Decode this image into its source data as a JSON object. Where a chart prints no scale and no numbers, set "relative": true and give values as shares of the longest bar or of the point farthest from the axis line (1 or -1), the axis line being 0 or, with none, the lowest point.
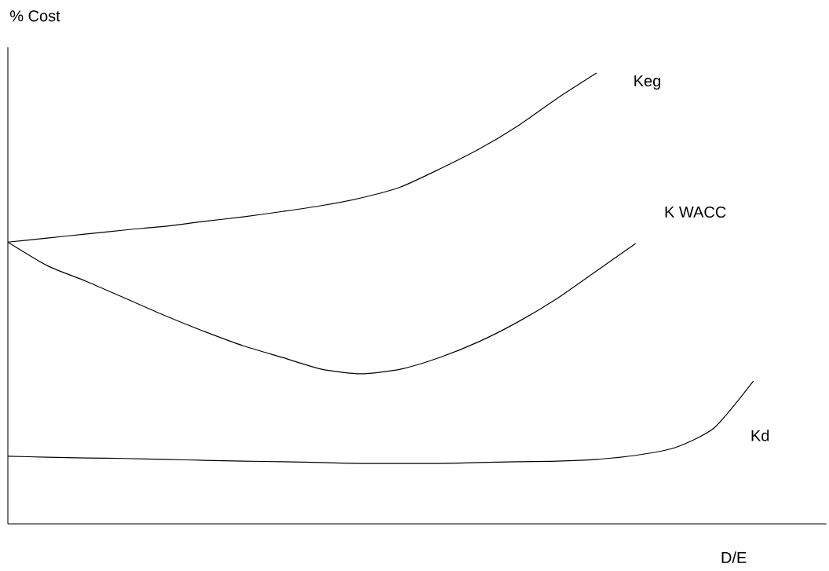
{
  "chart_data": {
    "type": "line",
    "relative": true,
    "xlabel": "D/E",
    "ylabel": "% Cost",
    "categories": [
      null,
      null,
      null,
      null,
      null,
      null,
      null,
      null,
      null,
      null,
      null,
      null,
      null,
      null,
      null,
      null,
      null,
      null,
      null,
      null
    ],
    "series": [
      {
        "name": "Keg",
        "color": "#000000",
        "values": [
          0.625,
          0.634,
          0.643,
          0.652,
          0.66,
          0.671,
          0.681,
          0.693,
          0.706,
          0.723,
          0.747,
          0.787,
          0.831,
          0.883,
          0.944,
          1,
          null,
          null,
          null,
          null
        ]
      },
      {
        "name": "K  WACC",
        "color": "#000000",
        "values": [
          0.625,
          0.573,
          0.538,
          0.5,
          0.462,
          0.427,
          0.395,
          0.369,
          0.343,
          0.333,
          0.343,
          0.369,
          0.404,
          0.448,
          0.5,
          0.561,
          0.622,
          null,
          null,
          null
        ]
      },
      {
        "name": "Kd",
        "color": "#000000",
        "values": [
          0.15,
          0.148,
          0.146,
          0.145,
          0.143,
          0.141,
          0.139,
          0.138,
          0.136,
          0.134,
          0.134,
          0.134,
          0.136,
          0.138,
          0.139,
          0.143,
          0.152,
          0.169,
          0.213,
          0.317
        ]
      }
    ]
  }
}
